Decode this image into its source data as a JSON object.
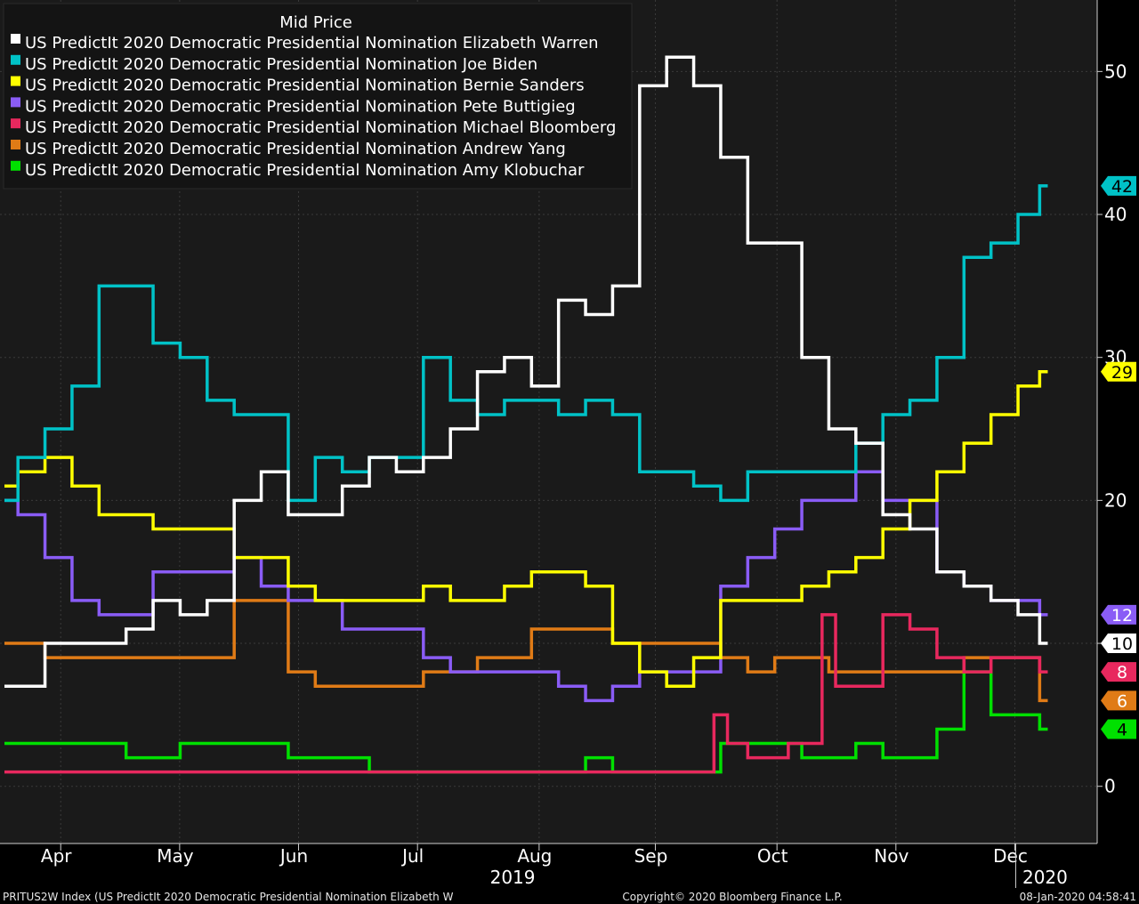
{
  "chart_data": {
    "type": "line",
    "legend_title": "Mid Price",
    "legend_position": "top-left",
    "grid": true,
    "y_axis_side": "right",
    "ylim": [
      -4,
      55
    ],
    "yticks": [
      0,
      10,
      20,
      30,
      40,
      50
    ],
    "xlim": [
      0,
      40.0
    ],
    "months": [
      {
        "label": "Apr",
        "x": 0.6
      },
      {
        "label": "May",
        "x": 5.0
      },
      {
        "label": "Jun",
        "x": 9.4
      },
      {
        "label": "Jul",
        "x": 13.8
      },
      {
        "label": "Aug",
        "x": 18.3
      },
      {
        "label": "Sep",
        "x": 22.6
      },
      {
        "label": "Oct",
        "x": 27.1
      },
      {
        "label": "Nov",
        "x": 31.5
      },
      {
        "label": "Dec",
        "x": 35.9
      }
    ],
    "year_labels": [
      {
        "label": "2019",
        "x": 18.8
      },
      {
        "label": "2020",
        "x": 38.5
      }
    ],
    "series": [
      {
        "name": "US PredictIt 2020 Democratic Presidential Nomination Elizabeth Warren",
        "color": "#ffffff",
        "last_label": "10",
        "points": [
          [
            0,
            7
          ],
          [
            1,
            7
          ],
          [
            2,
            10
          ],
          [
            3,
            10
          ],
          [
            4,
            10
          ],
          [
            5,
            11
          ],
          [
            6,
            13
          ],
          [
            7,
            12
          ],
          [
            8,
            13
          ],
          [
            9,
            20
          ],
          [
            10,
            22
          ],
          [
            11,
            19
          ],
          [
            12,
            19
          ],
          [
            13,
            21
          ],
          [
            14,
            23
          ],
          [
            15,
            22
          ],
          [
            16,
            23
          ],
          [
            17,
            25
          ],
          [
            18,
            29
          ],
          [
            19,
            30
          ],
          [
            20,
            28
          ],
          [
            21,
            34
          ],
          [
            22,
            33
          ],
          [
            23,
            35
          ],
          [
            24,
            49
          ],
          [
            25,
            51
          ],
          [
            26,
            49
          ],
          [
            27,
            44
          ],
          [
            28,
            38
          ],
          [
            29,
            38
          ],
          [
            30,
            30
          ],
          [
            31,
            25
          ],
          [
            32,
            24
          ],
          [
            33,
            19
          ],
          [
            34,
            18
          ],
          [
            35,
            15
          ],
          [
            36,
            14
          ],
          [
            37,
            13
          ],
          [
            38,
            12
          ],
          [
            38.6,
            10
          ]
        ]
      },
      {
        "name": "US PredictIt 2020 Democratic Presidential Nomination Joe Biden",
        "color": "#00c2c7",
        "last_label": "42",
        "points": [
          [
            0,
            20
          ],
          [
            1,
            23
          ],
          [
            2,
            25
          ],
          [
            3,
            28
          ],
          [
            4,
            35
          ],
          [
            5,
            35
          ],
          [
            6,
            31
          ],
          [
            7,
            30
          ],
          [
            8,
            27
          ],
          [
            9,
            26
          ],
          [
            10,
            26
          ],
          [
            11,
            20
          ],
          [
            12,
            23
          ],
          [
            13,
            22
          ],
          [
            14,
            23
          ],
          [
            15,
            23
          ],
          [
            16,
            30
          ],
          [
            17,
            27
          ],
          [
            18,
            26
          ],
          [
            19,
            27
          ],
          [
            20,
            27
          ],
          [
            21,
            26
          ],
          [
            22,
            27
          ],
          [
            23,
            26
          ],
          [
            24,
            22
          ],
          [
            25,
            22
          ],
          [
            26,
            21
          ],
          [
            27,
            20
          ],
          [
            28,
            22
          ],
          [
            29,
            22
          ],
          [
            30,
            22
          ],
          [
            31,
            22
          ],
          [
            32,
            24
          ],
          [
            33,
            26
          ],
          [
            34,
            27
          ],
          [
            35,
            30
          ],
          [
            36,
            37
          ],
          [
            37,
            38
          ],
          [
            38,
            40
          ],
          [
            38.6,
            42
          ]
        ]
      },
      {
        "name": "US PredictIt 2020 Democratic Presidential Nomination Bernie Sanders",
        "color": "#ffff00",
        "last_label": "29",
        "points": [
          [
            0,
            21
          ],
          [
            1,
            22
          ],
          [
            2,
            23
          ],
          [
            3,
            21
          ],
          [
            4,
            19
          ],
          [
            5,
            19
          ],
          [
            6,
            18
          ],
          [
            7,
            18
          ],
          [
            8,
            18
          ],
          [
            9,
            16
          ],
          [
            10,
            16
          ],
          [
            11,
            14
          ],
          [
            12,
            13
          ],
          [
            13,
            13
          ],
          [
            14,
            13
          ],
          [
            15,
            13
          ],
          [
            16,
            14
          ],
          [
            17,
            13
          ],
          [
            18,
            13
          ],
          [
            19,
            14
          ],
          [
            20,
            15
          ],
          [
            21,
            15
          ],
          [
            22,
            14
          ],
          [
            23,
            10
          ],
          [
            24,
            8
          ],
          [
            25,
            7
          ],
          [
            26,
            9
          ],
          [
            27,
            13
          ],
          [
            28,
            13
          ],
          [
            29,
            13
          ],
          [
            30,
            14
          ],
          [
            31,
            15
          ],
          [
            32,
            16
          ],
          [
            33,
            18
          ],
          [
            34,
            20
          ],
          [
            35,
            22
          ],
          [
            36,
            24
          ],
          [
            37,
            26
          ],
          [
            38,
            28
          ],
          [
            38.6,
            29
          ]
        ]
      },
      {
        "name": "US PredictIt 2020 Democratic Presidential Nomination Pete Buttigieg",
        "color": "#8a5cf6",
        "last_label": "12",
        "points": [
          [
            0,
            20
          ],
          [
            1,
            19
          ],
          [
            2,
            16
          ],
          [
            3,
            13
          ],
          [
            4,
            12
          ],
          [
            5,
            12
          ],
          [
            6,
            15
          ],
          [
            7,
            15
          ],
          [
            8,
            15
          ],
          [
            9,
            16
          ],
          [
            10,
            14
          ],
          [
            11,
            13
          ],
          [
            12,
            13
          ],
          [
            13,
            11
          ],
          [
            14,
            11
          ],
          [
            15,
            11
          ],
          [
            16,
            9
          ],
          [
            17,
            8
          ],
          [
            18,
            8
          ],
          [
            19,
            8
          ],
          [
            20,
            8
          ],
          [
            21,
            7
          ],
          [
            22,
            6
          ],
          [
            23,
            7
          ],
          [
            24,
            8
          ],
          [
            25,
            8
          ],
          [
            26,
            8
          ],
          [
            27,
            14
          ],
          [
            28,
            16
          ],
          [
            29,
            18
          ],
          [
            30,
            20
          ],
          [
            31,
            20
          ],
          [
            32,
            22
          ],
          [
            33,
            20
          ],
          [
            34,
            20
          ],
          [
            35,
            15
          ],
          [
            36,
            14
          ],
          [
            37,
            13
          ],
          [
            38,
            13
          ],
          [
            38.6,
            12
          ]
        ]
      },
      {
        "name": "US PredictIt 2020 Democratic Presidential Nomination Michael Bloomberg",
        "color": "#e8285e",
        "last_label": "8",
        "points": [
          [
            0,
            1
          ],
          [
            10,
            1
          ],
          [
            20,
            1
          ],
          [
            26,
            1
          ],
          [
            26.5,
            5
          ],
          [
            27,
            3
          ],
          [
            28,
            2
          ],
          [
            30,
            3
          ],
          [
            30.5,
            12
          ],
          [
            31,
            7
          ],
          [
            32,
            7
          ],
          [
            33,
            12
          ],
          [
            34,
            11
          ],
          [
            35,
            9
          ],
          [
            36,
            8
          ],
          [
            37,
            9
          ],
          [
            38,
            9
          ],
          [
            38.6,
            8
          ]
        ]
      },
      {
        "name": "US PredictIt 2020 Democratic Presidential Nomination Andrew Yang",
        "color": "#e07b16",
        "last_label": "6",
        "points": [
          [
            0,
            10
          ],
          [
            1,
            10
          ],
          [
            2,
            9
          ],
          [
            3,
            9
          ],
          [
            4,
            9
          ],
          [
            5,
            9
          ],
          [
            6,
            9
          ],
          [
            7,
            9
          ],
          [
            8,
            9
          ],
          [
            9,
            13
          ],
          [
            10,
            13
          ],
          [
            11,
            8
          ],
          [
            12,
            7
          ],
          [
            13,
            7
          ],
          [
            14,
            7
          ],
          [
            15,
            7
          ],
          [
            16,
            8
          ],
          [
            17,
            8
          ],
          [
            18,
            9
          ],
          [
            19,
            9
          ],
          [
            20,
            11
          ],
          [
            21,
            11
          ],
          [
            22,
            11
          ],
          [
            23,
            10
          ],
          [
            24,
            10
          ],
          [
            25,
            10
          ],
          [
            26,
            10
          ],
          [
            27,
            9
          ],
          [
            28,
            8
          ],
          [
            29,
            9
          ],
          [
            30,
            9
          ],
          [
            31,
            8
          ],
          [
            32,
            8
          ],
          [
            33,
            8
          ],
          [
            34,
            8
          ],
          [
            35,
            8
          ],
          [
            36,
            9
          ],
          [
            37,
            9
          ],
          [
            38,
            9
          ],
          [
            38.6,
            6
          ]
        ]
      },
      {
        "name": "US PredictIt 2020 Democratic Presidential Nomination Amy Klobuchar",
        "color": "#00e000",
        "last_label": "4",
        "points": [
          [
            0,
            3
          ],
          [
            1,
            3
          ],
          [
            2,
            3
          ],
          [
            3,
            3
          ],
          [
            4,
            3
          ],
          [
            5,
            2
          ],
          [
            6,
            2
          ],
          [
            7,
            3
          ],
          [
            8,
            3
          ],
          [
            9,
            3
          ],
          [
            10,
            3
          ],
          [
            11,
            2
          ],
          [
            12,
            2
          ],
          [
            13,
            2
          ],
          [
            14,
            1
          ],
          [
            15,
            1
          ],
          [
            16,
            1
          ],
          [
            17,
            1
          ],
          [
            18,
            1
          ],
          [
            19,
            1
          ],
          [
            20,
            1
          ],
          [
            21,
            1
          ],
          [
            22,
            2
          ],
          [
            23,
            1
          ],
          [
            24,
            1
          ],
          [
            25,
            1
          ],
          [
            26,
            1
          ],
          [
            27,
            3
          ],
          [
            28,
            3
          ],
          [
            29,
            3
          ],
          [
            30,
            2
          ],
          [
            31,
            2
          ],
          [
            32,
            3
          ],
          [
            33,
            2
          ],
          [
            34,
            2
          ],
          [
            35,
            4
          ],
          [
            36,
            8
          ],
          [
            37,
            5
          ],
          [
            38,
            5
          ],
          [
            38.6,
            4
          ]
        ]
      }
    ]
  },
  "footer": {
    "left": "PRITUS2W Index (US PredictIt 2020 Democratic Presidential Nomination Elizabeth W",
    "center": "Copyright© 2020 Bloomberg Finance L.P.",
    "right": "08-Jan-2020 04:58:41"
  }
}
